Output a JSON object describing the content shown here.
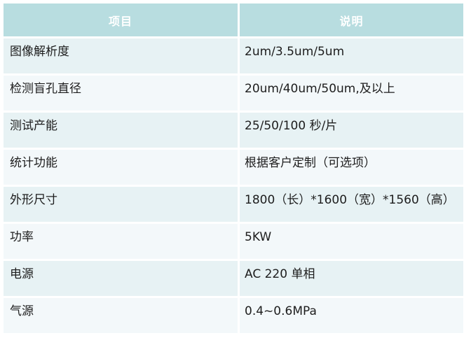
{
  "colors": {
    "header_bg": "#b8dde0",
    "header_text": "#ffffff",
    "row_odd_bg": "#e7f2f4",
    "row_even_bg": "#f3f8fa",
    "cell_text": "#1d1d1d",
    "gutter": "#ffffff"
  },
  "table": {
    "headers": {
      "item": "项目",
      "description": "说明"
    },
    "rows": [
      {
        "item": "图像解析度",
        "desc": "2um/3.5um/5um"
      },
      {
        "item": "检测盲孔直径",
        "desc": "20um/40um/50um,及以上"
      },
      {
        "item": "测试产能",
        "desc": "25/50/100 秒/片"
      },
      {
        "item": "统计功能",
        "desc": "根据客户定制（可选项）"
      },
      {
        "item": "外形尺寸",
        "desc": "1800（长）*1600（宽）*1560（高）"
      },
      {
        "item": "功率",
        "desc": "5KW"
      },
      {
        "item": "电源",
        "desc": "AC 220 单相"
      },
      {
        "item": "气源",
        "desc": "0.4~0.6MPa"
      }
    ]
  }
}
